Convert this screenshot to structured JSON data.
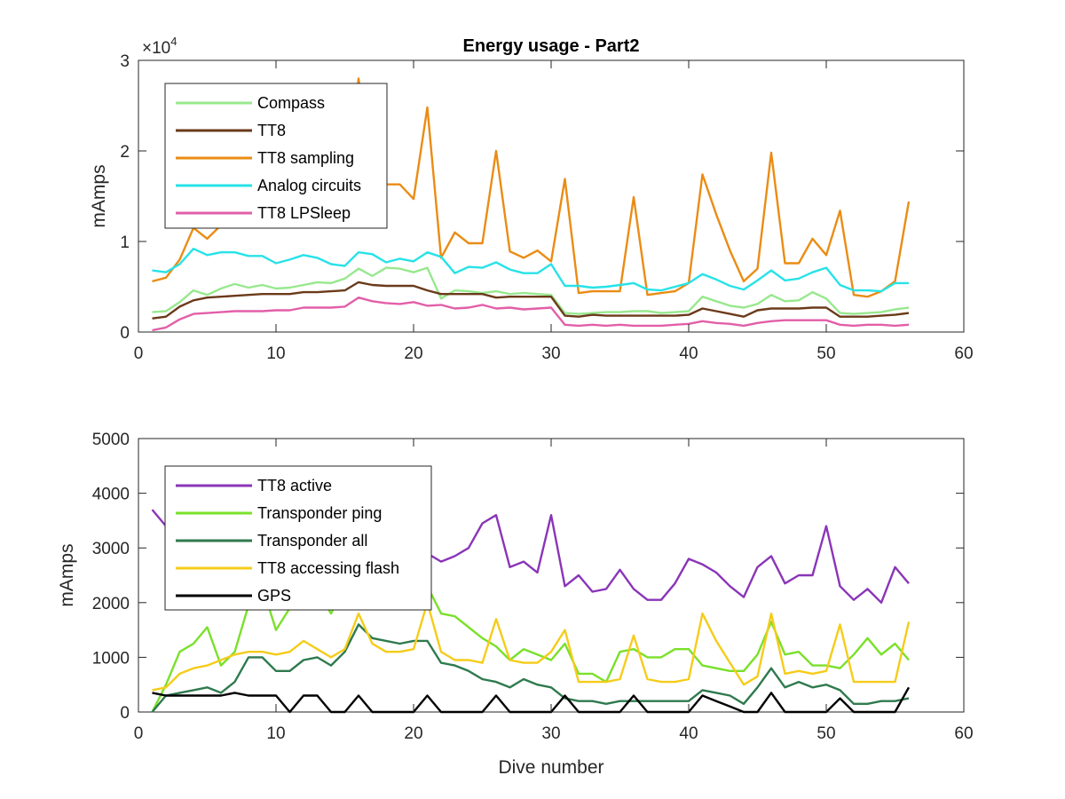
{
  "chart_data": [
    {
      "type": "line",
      "title": "Energy usage - Part2",
      "xlabel": "",
      "ylabel": "mAmps",
      "y_exponent_label": "×10",
      "y_exponent_power": "4",
      "xlim": [
        0,
        60
      ],
      "ylim": [
        0,
        30000
      ],
      "xticks": [
        0,
        10,
        20,
        30,
        40,
        50,
        60
      ],
      "xtick_labels": [
        "0",
        "10",
        "20",
        "30",
        "40",
        "50",
        "60"
      ],
      "yticks": [
        0,
        10000,
        20000,
        30000
      ],
      "ytick_labels": [
        "0",
        "1",
        "2",
        "3"
      ],
      "grid": false,
      "legend_position": "top-left",
      "x": [
        1,
        2,
        3,
        4,
        5,
        6,
        7,
        8,
        9,
        10,
        11,
        12,
        13,
        14,
        15,
        16,
        17,
        18,
        19,
        20,
        21,
        22,
        23,
        24,
        25,
        26,
        27,
        28,
        29,
        30,
        31,
        32,
        33,
        34,
        35,
        36,
        37,
        38,
        39,
        40,
        41,
        42,
        43,
        44,
        45,
        46,
        47,
        48,
        49,
        50,
        51,
        52,
        53,
        54,
        55,
        56
      ],
      "series": [
        {
          "name": "Compass",
          "color": "#98e88e",
          "values": [
            2200,
            2300,
            3300,
            4600,
            4100,
            4800,
            5300,
            4900,
            5200,
            4800,
            4900,
            5200,
            5500,
            5400,
            5900,
            7000,
            6200,
            7100,
            7000,
            6600,
            7100,
            3700,
            4600,
            4500,
            4300,
            4500,
            4200,
            4300,
            4200,
            4100,
            2100,
            2000,
            2100,
            2200,
            2200,
            2300,
            2300,
            2100,
            2200,
            2300,
            3900,
            3400,
            2900,
            2700,
            3100,
            4100,
            3400,
            3500,
            4400,
            3700,
            2100,
            2000,
            2100,
            2200,
            2500,
            2700
          ]
        },
        {
          "name": "TT8",
          "color": "#6b3a1a",
          "values": [
            1500,
            1700,
            2800,
            3500,
            3800,
            3900,
            4000,
            4100,
            4200,
            4200,
            4200,
            4400,
            4400,
            4500,
            4600,
            5500,
            5200,
            5100,
            5100,
            5100,
            4600,
            4200,
            4200,
            4200,
            4200,
            3800,
            3900,
            3900,
            3900,
            3900,
            1800,
            1700,
            1900,
            1800,
            1800,
            1800,
            1800,
            1800,
            1800,
            1900,
            2600,
            2300,
            2000,
            1700,
            2400,
            2600,
            2600,
            2600,
            2700,
            2700,
            1700,
            1700,
            1700,
            1800,
            1900,
            2100
          ]
        },
        {
          "name": "TT8 sampling",
          "color": "#ea8c14",
          "values": [
            5600,
            6000,
            8000,
            11500,
            10300,
            11800,
            12500,
            13000,
            13500,
            13000,
            12000,
            12500,
            13500,
            14000,
            15500,
            28000,
            17500,
            16300,
            16300,
            14700,
            24800,
            8200,
            11000,
            9800,
            9800,
            20000,
            8900,
            8200,
            9000,
            7800,
            16900,
            4300,
            4500,
            4500,
            4500,
            14900,
            4100,
            4300,
            4500,
            5400,
            17400,
            13000,
            9000,
            5600,
            7000,
            19800,
            7600,
            7600,
            10300,
            8500,
            13400,
            4100,
            3900,
            4500,
            5600,
            14400
          ]
        },
        {
          "name": "Analog circuits",
          "color": "#27e2e8",
          "values": [
            6800,
            6600,
            7500,
            9200,
            8500,
            8800,
            8800,
            8400,
            8400,
            7600,
            8000,
            8500,
            8200,
            7500,
            7300,
            8800,
            8600,
            7700,
            8100,
            7800,
            8800,
            8300,
            6500,
            7200,
            7100,
            7700,
            6900,
            6500,
            6500,
            7500,
            5100,
            5100,
            4900,
            5000,
            5200,
            5400,
            4700,
            4600,
            5000,
            5400,
            6400,
            5800,
            5100,
            4700,
            5700,
            6800,
            5700,
            5900,
            6600,
            7100,
            5200,
            4600,
            4600,
            4500,
            5400,
            5400
          ]
        },
        {
          "name": "TT8 LPSleep",
          "color": "#e25fa8",
          "values": [
            200,
            500,
            1400,
            2000,
            2100,
            2200,
            2300,
            2300,
            2300,
            2400,
            2400,
            2700,
            2700,
            2700,
            2800,
            3800,
            3400,
            3200,
            3100,
            3300,
            2900,
            3000,
            2600,
            2700,
            3000,
            2600,
            2700,
            2500,
            2600,
            2700,
            800,
            700,
            800,
            700,
            800,
            700,
            700,
            700,
            800,
            900,
            1200,
            1000,
            900,
            700,
            1000,
            1200,
            1300,
            1300,
            1300,
            1300,
            800,
            700,
            800,
            800,
            700,
            800
          ]
        }
      ]
    },
    {
      "type": "line",
      "title": "",
      "xlabel": "Dive number",
      "ylabel": "mAmps",
      "xlim": [
        0,
        60
      ],
      "ylim": [
        0,
        5000
      ],
      "xticks": [
        0,
        10,
        20,
        30,
        40,
        50,
        60
      ],
      "xtick_labels": [
        "0",
        "10",
        "20",
        "30",
        "40",
        "50",
        "60"
      ],
      "yticks": [
        0,
        1000,
        2000,
        3000,
        4000,
        5000
      ],
      "ytick_labels": [
        "0",
        "1000",
        "2000",
        "3000",
        "4000",
        "5000"
      ],
      "grid": false,
      "legend_position": "top-left",
      "x": [
        1,
        2,
        3,
        4,
        5,
        6,
        7,
        8,
        9,
        10,
        11,
        12,
        13,
        14,
        15,
        16,
        17,
        18,
        19,
        20,
        21,
        22,
        23,
        24,
        25,
        26,
        27,
        28,
        29,
        30,
        31,
        32,
        33,
        34,
        35,
        36,
        37,
        38,
        39,
        40,
        41,
        42,
        43,
        44,
        45,
        46,
        47,
        48,
        49,
        50,
        51,
        52,
        53,
        54,
        55,
        56
      ],
      "series": [
        {
          "name": "TT8 active",
          "color": "#8a35b8",
          "values": [
            3700,
            3400,
            3300,
            3300,
            3300,
            3300,
            3400,
            3300,
            3300,
            3300,
            3300,
            3300,
            3300,
            3200,
            3200,
            3300,
            3200,
            3200,
            3100,
            3100,
            2900,
            2750,
            2850,
            3000,
            3450,
            3600,
            2650,
            2750,
            2550,
            3600,
            2300,
            2500,
            2200,
            2250,
            2600,
            2250,
            2050,
            2050,
            2350,
            2800,
            2700,
            2550,
            2300,
            2100,
            2650,
            2850,
            2350,
            2500,
            2500,
            3400,
            2300,
            2050,
            2250,
            2000,
            2650,
            2350
          ]
        },
        {
          "name": "Transponder ping",
          "color": "#7ae02a",
          "values": [
            0,
            500,
            1100,
            1250,
            1550,
            850,
            1100,
            1950,
            2300,
            1500,
            1900,
            2100,
            2200,
            1800,
            2300,
            2400,
            2400,
            2400,
            2300,
            2350,
            2300,
            1800,
            1750,
            1550,
            1350,
            1200,
            950,
            1150,
            1050,
            950,
            1250,
            700,
            700,
            550,
            1100,
            1150,
            1000,
            1000,
            1150,
            1150,
            850,
            800,
            750,
            750,
            1050,
            1650,
            1050,
            1100,
            850,
            850,
            800,
            1050,
            1350,
            1050,
            1250,
            950
          ]
        },
        {
          "name": "Transponder all",
          "color": "#2f7a4e",
          "values": [
            0,
            300,
            350,
            400,
            450,
            350,
            550,
            1000,
            1000,
            750,
            750,
            950,
            1000,
            850,
            1100,
            1600,
            1350,
            1300,
            1250,
            1300,
            1300,
            900,
            850,
            750,
            600,
            550,
            450,
            600,
            500,
            450,
            250,
            200,
            200,
            150,
            200,
            200,
            200,
            200,
            200,
            200,
            400,
            350,
            300,
            150,
            450,
            800,
            450,
            550,
            450,
            500,
            400,
            150,
            150,
            200,
            200,
            250
          ]
        },
        {
          "name": "TT8 accessing flash",
          "color": "#f5cc1a",
          "values": [
            400,
            450,
            700,
            800,
            850,
            950,
            1050,
            1100,
            1100,
            1050,
            1100,
            1300,
            1150,
            1000,
            1150,
            1800,
            1250,
            1100,
            1100,
            1150,
            2000,
            1100,
            950,
            950,
            900,
            1700,
            950,
            900,
            900,
            1100,
            1500,
            550,
            550,
            550,
            600,
            1400,
            600,
            550,
            550,
            600,
            1800,
            1300,
            900,
            500,
            650,
            1800,
            700,
            750,
            700,
            750,
            1600,
            550,
            550,
            550,
            550,
            1650
          ]
        },
        {
          "name": "GPS",
          "color": "#000000",
          "values": [
            350,
            300,
            300,
            300,
            300,
            300,
            350,
            300,
            300,
            300,
            0,
            300,
            300,
            0,
            0,
            300,
            0,
            0,
            0,
            0,
            300,
            0,
            0,
            0,
            0,
            300,
            0,
            0,
            0,
            0,
            300,
            0,
            0,
            0,
            0,
            300,
            0,
            0,
            0,
            0,
            300,
            200,
            100,
            0,
            0,
            350,
            0,
            0,
            0,
            0,
            250,
            0,
            0,
            0,
            0,
            450
          ]
        }
      ]
    }
  ]
}
